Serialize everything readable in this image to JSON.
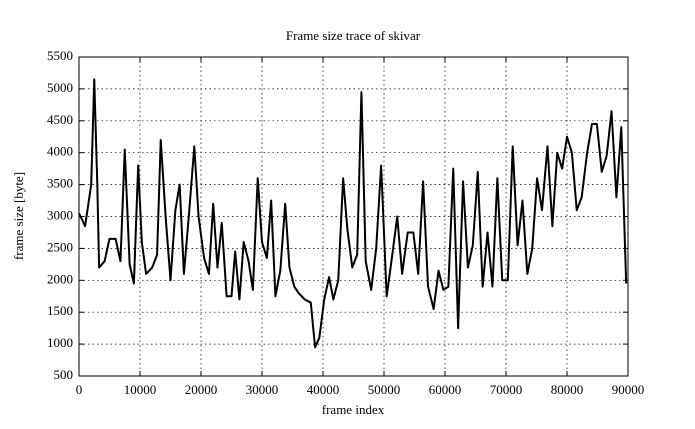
{
  "chart_data": {
    "type": "line",
    "title": "Frame size trace of skivar",
    "x_label": "frame index",
    "y_label": "frame size [byte]",
    "x": [
      0,
      1000,
      2000,
      2500,
      3000,
      3300,
      4200,
      5000,
      6000,
      6800,
      7500,
      8300,
      9000,
      9700,
      10300,
      11000,
      12000,
      12800,
      13400,
      14200,
      15000,
      15800,
      16500,
      17200,
      18000,
      18900,
      19600,
      20500,
      21300,
      22000,
      22700,
      23400,
      24200,
      25000,
      25600,
      26300,
      27000,
      27800,
      28500,
      29300,
      30000,
      30800,
      31500,
      32200,
      33000,
      33800,
      34500,
      35300,
      36000,
      37000,
      38000,
      38700,
      39400,
      40200,
      41000,
      41700,
      42500,
      43300,
      44000,
      44800,
      45600,
      46300,
      47000,
      47900,
      48720,
      49530,
      50440,
      51360,
      52170,
      52970,
      53890,
      54810,
      55610,
      56410,
      57220,
      58140,
      58940,
      59740,
      60550,
      61350,
      62150,
      62960,
      63760,
      64560,
      65370,
      66170,
      66970,
      67780,
      68580,
      69380,
      70300,
      71100,
      71900,
      72700,
      73500,
      74300,
      75100,
      75900,
      76800,
      77600,
      78400,
      79200,
      80000,
      80800,
      81600,
      82400,
      83300,
      84100,
      84900,
      85700,
      86500,
      87300,
      88100,
      88900,
      89700
    ],
    "series": [
      {
        "color": "#000000",
        "values": [
          3050,
          2850,
          3500,
          5150,
          3500,
          2200,
          2300,
          2650,
          2650,
          2300,
          4050,
          2250,
          1950,
          3800,
          2600,
          2100,
          2200,
          2400,
          4200,
          3000,
          2000,
          3100,
          3500,
          2100,
          3000,
          4100,
          3000,
          2350,
          2100,
          3200,
          2200,
          2900,
          1750,
          1750,
          2450,
          1700,
          2600,
          2300,
          1850,
          3600,
          2600,
          2350,
          3250,
          1750,
          2150,
          3200,
          2200,
          1900,
          1800,
          1700,
          1650,
          950,
          1100,
          1700,
          2050,
          1700,
          2000,
          3600,
          2800,
          2200,
          2400,
          4950,
          2300,
          1850,
          2500,
          3800,
          1750,
          2400,
          3000,
          2100,
          2750,
          2750,
          2100,
          3550,
          1900,
          1550,
          2150,
          1850,
          1900,
          3750,
          1250,
          3550,
          2200,
          2550,
          3700,
          1900,
          2750,
          1900,
          3600,
          2000,
          2000,
          4100,
          2550,
          3250,
          2100,
          2500,
          3600,
          3100,
          4100,
          2850,
          4000,
          3750,
          4250,
          4000,
          3100,
          3300,
          4000,
          4450,
          4450,
          3700,
          3950,
          4650,
          3300,
          4400,
          1950
        ]
      }
    ],
    "xlim": [
      0,
      90000
    ],
    "xticks": [
      0,
      10000,
      20000,
      30000,
      40000,
      50000,
      60000,
      70000,
      80000,
      90000
    ],
    "ylim": [
      500,
      5500
    ],
    "yticks": [
      500,
      1000,
      1500,
      2000,
      2500,
      3000,
      3500,
      4000,
      4500,
      5000,
      5500
    ],
    "grid": true
  }
}
